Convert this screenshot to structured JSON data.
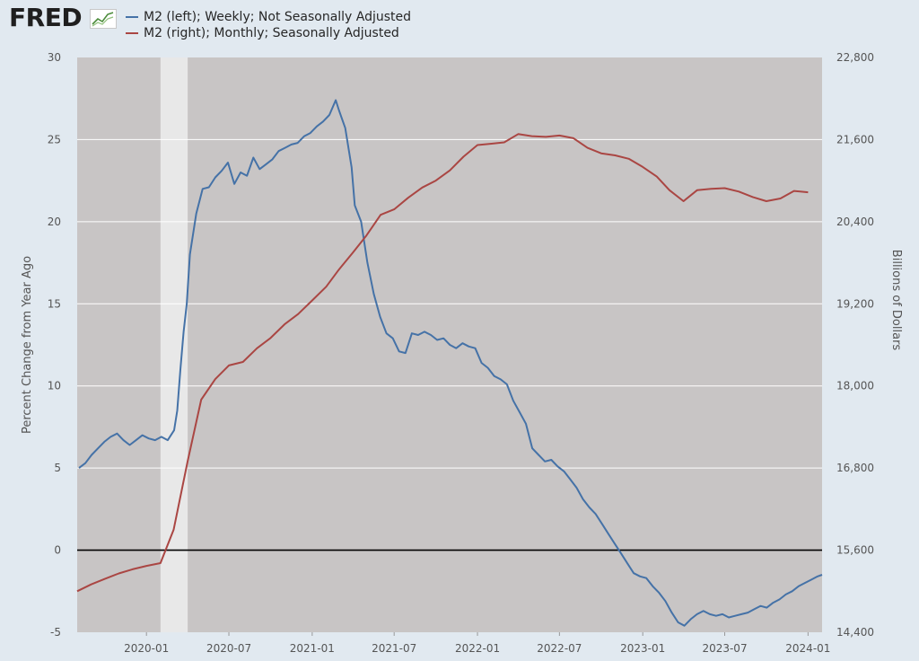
{
  "header": {
    "logo_text": "FRED",
    "logo_icon": "chart-line-icon"
  },
  "legend": [
    {
      "label": "M2 (left); Weekly; Not Seasonally Adjusted",
      "color": "#4572a7"
    },
    {
      "label": "M2 (right); Monthly; Seasonally Adjusted",
      "color": "#aa4643"
    }
  ],
  "colors": {
    "plot_background": "#c8c5c5",
    "recession_shading": "#e8e8e8",
    "gridline": "#ffffff",
    "zero_line": "#000000",
    "page_background": "#e1e9f0"
  },
  "chart_data": {
    "type": "line",
    "title": "",
    "xlabel": "",
    "ylabel_left": "Percent Change from Year Ago",
    "ylabel_right": "Billions of Dollars",
    "ylim_left": [
      -5,
      30
    ],
    "ylim_right": [
      14400,
      22800
    ],
    "yticks_left": [
      "-5",
      "0",
      "5",
      "10",
      "15",
      "20",
      "25",
      "30"
    ],
    "yticks_right": [
      "14,400",
      "15,600",
      "16,800",
      "18,000",
      "19,200",
      "20,400",
      "21,600",
      "22,800"
    ],
    "x_range": [
      "2019-08",
      "2024-02"
    ],
    "x_tick_labels": [
      "2020-01",
      "2020-07",
      "2021-01",
      "2021-07",
      "2022-01",
      "2022-07",
      "2023-01",
      "2023-07",
      "2024-01"
    ],
    "recession": {
      "start": "2020-02",
      "end": "2020-04"
    },
    "zero_line": true,
    "grid": true,
    "legend_placement": "top",
    "series": [
      {
        "name": "M2 (left); Weekly; Not Seasonally Adjusted",
        "axis": "left",
        "color": "#4572a7",
        "x": [
          "2019-08-05",
          "2019-08-19",
          "2019-09-02",
          "2019-09-16",
          "2019-09-30",
          "2019-10-14",
          "2019-10-28",
          "2019-11-11",
          "2019-11-25",
          "2019-12-09",
          "2019-12-23",
          "2020-01-06",
          "2020-01-20",
          "2020-02-03",
          "2020-02-17",
          "2020-03-02",
          "2020-03-09",
          "2020-03-16",
          "2020-03-23",
          "2020-03-30",
          "2020-04-06",
          "2020-04-20",
          "2020-05-04",
          "2020-05-18",
          "2020-06-01",
          "2020-06-15",
          "2020-06-29",
          "2020-07-13",
          "2020-07-27",
          "2020-08-10",
          "2020-08-24",
          "2020-09-07",
          "2020-09-21",
          "2020-10-05",
          "2020-10-19",
          "2020-11-02",
          "2020-11-16",
          "2020-11-30",
          "2020-12-14",
          "2020-12-28",
          "2021-01-11",
          "2021-01-25",
          "2021-02-08",
          "2021-02-22",
          "2021-03-01",
          "2021-03-15",
          "2021-03-29",
          "2021-04-05",
          "2021-04-19",
          "2021-05-03",
          "2021-05-17",
          "2021-05-31",
          "2021-06-14",
          "2021-06-28",
          "2021-07-12",
          "2021-07-26",
          "2021-08-09",
          "2021-08-23",
          "2021-09-06",
          "2021-09-20",
          "2021-10-04",
          "2021-10-18",
          "2021-11-01",
          "2021-11-15",
          "2021-11-29",
          "2021-12-13",
          "2021-12-27",
          "2022-01-10",
          "2022-01-24",
          "2022-02-07",
          "2022-02-21",
          "2022-03-07",
          "2022-03-21",
          "2022-04-04",
          "2022-04-18",
          "2022-05-02",
          "2022-05-16",
          "2022-05-30",
          "2022-06-13",
          "2022-06-27",
          "2022-07-11",
          "2022-07-25",
          "2022-08-08",
          "2022-08-22",
          "2022-09-05",
          "2022-09-19",
          "2022-10-03",
          "2022-10-17",
          "2022-10-31",
          "2022-11-14",
          "2022-11-28",
          "2022-12-12",
          "2022-12-26",
          "2023-01-09",
          "2023-01-23",
          "2023-02-06",
          "2023-02-20",
          "2023-03-06",
          "2023-03-20",
          "2023-04-03",
          "2023-04-17",
          "2023-05-01",
          "2023-05-15",
          "2023-05-29",
          "2023-06-12",
          "2023-06-26",
          "2023-07-10",
          "2023-07-24",
          "2023-08-07",
          "2023-08-21",
          "2023-09-04",
          "2023-09-18",
          "2023-10-02",
          "2023-10-16",
          "2023-10-30",
          "2023-11-13",
          "2023-11-27",
          "2023-12-11",
          "2023-12-25",
          "2024-01-08",
          "2024-01-22",
          "2024-02-01"
        ],
        "values": [
          5.0,
          5.3,
          5.8,
          6.2,
          6.6,
          6.9,
          7.1,
          6.7,
          6.4,
          6.7,
          7.0,
          6.8,
          6.7,
          6.9,
          6.7,
          7.3,
          8.5,
          11.0,
          13.3,
          15.0,
          18.0,
          20.5,
          22.0,
          22.1,
          22.7,
          23.1,
          23.6,
          22.3,
          23.0,
          22.8,
          23.9,
          23.2,
          23.5,
          23.8,
          24.3,
          24.5,
          24.7,
          24.8,
          25.2,
          25.4,
          25.8,
          26.1,
          26.5,
          27.4,
          26.8,
          25.7,
          23.3,
          21.0,
          20.0,
          17.5,
          15.6,
          14.2,
          13.2,
          12.9,
          12.1,
          12.0,
          13.2,
          13.1,
          13.3,
          13.1,
          12.8,
          12.9,
          12.5,
          12.3,
          12.6,
          12.4,
          12.3,
          11.4,
          11.1,
          10.6,
          10.4,
          10.1,
          9.1,
          8.4,
          7.7,
          6.2,
          5.8,
          5.4,
          5.5,
          5.1,
          4.8,
          4.3,
          3.8,
          3.1,
          2.6,
          2.2,
          1.6,
          1.0,
          0.4,
          -0.2,
          -0.8,
          -1.4,
          -1.6,
          -1.7,
          -2.2,
          -2.6,
          -3.1,
          -3.8,
          -4.4,
          -4.6,
          -4.2,
          -3.9,
          -3.7,
          -3.9,
          -4.0,
          -3.9,
          -4.1,
          -4.0,
          -3.9,
          -3.8,
          -3.6,
          -3.4,
          -3.5,
          -3.2,
          -3.0,
          -2.7,
          -2.5,
          -2.2,
          -2.0,
          -1.8,
          -1.6,
          -1.5
        ]
      },
      {
        "name": "M2 (right); Monthly; Seasonally Adjusted",
        "axis": "right",
        "color": "#aa4643",
        "x": [
          "2019-08",
          "2019-09",
          "2019-10",
          "2019-11",
          "2019-12",
          "2020-01",
          "2020-02",
          "2020-03",
          "2020-04",
          "2020-05",
          "2020-06",
          "2020-07",
          "2020-08",
          "2020-09",
          "2020-10",
          "2020-11",
          "2020-12",
          "2021-01",
          "2021-02",
          "2021-03",
          "2021-04",
          "2021-05",
          "2021-06",
          "2021-07",
          "2021-08",
          "2021-09",
          "2021-10",
          "2021-11",
          "2021-12",
          "2022-01",
          "2022-02",
          "2022-03",
          "2022-04",
          "2022-05",
          "2022-06",
          "2022-07",
          "2022-08",
          "2022-09",
          "2022-10",
          "2022-11",
          "2022-12",
          "2023-01",
          "2023-02",
          "2023-03",
          "2023-04",
          "2023-05",
          "2023-06",
          "2023-07",
          "2023-08",
          "2023-09",
          "2023-10",
          "2023-11",
          "2023-12",
          "2024-01"
        ],
        "values": [
          15000,
          15100,
          15180,
          15260,
          15320,
          15370,
          15410,
          15900,
          16900,
          17800,
          18100,
          18300,
          18350,
          18550,
          18700,
          18900,
          19050,
          19250,
          19450,
          19700,
          19950,
          20200,
          20500,
          20580,
          20750,
          20900,
          21000,
          21150,
          21350,
          21520,
          21540,
          21560,
          21680,
          21650,
          21640,
          21660,
          21620,
          21480,
          21400,
          21370,
          21320,
          21200,
          21060,
          20860,
          20700,
          20860,
          20880,
          20890,
          20840,
          20760,
          20700,
          20740,
          20850,
          20830
        ]
      }
    ]
  }
}
